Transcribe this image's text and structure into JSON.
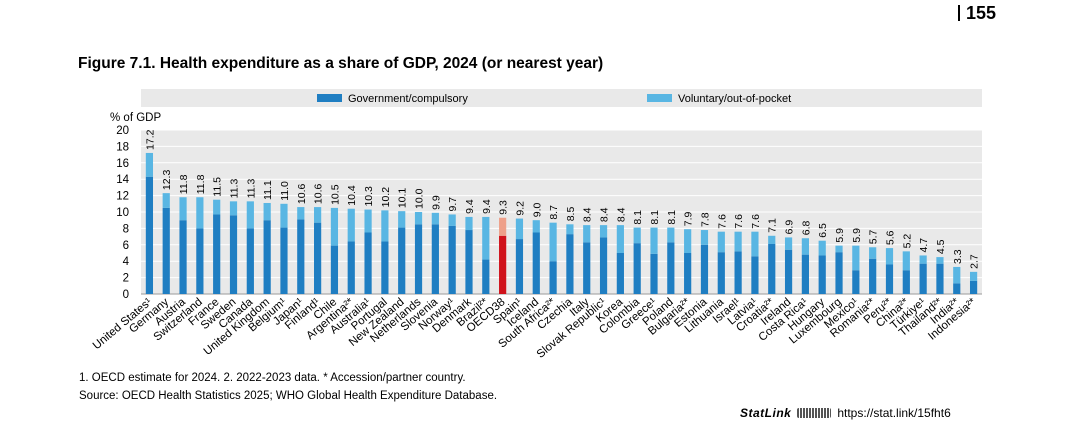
{
  "page_number": "155",
  "figure_title": "Figure 7.1. Health expenditure as a share of GDP, 2024 (or nearest year)",
  "footnote": "1. OECD estimate for 2024. 2. 2022-2023 data. * Accession/partner country.",
  "source": "Source: OECD Health Statistics 2025; WHO Global Health Expenditure Database.",
  "statlink": {
    "label": "StatLink",
    "logo_icon": "statlink-logo-icon",
    "url": "https://stat.link/15fht6"
  },
  "colors": {
    "government": "#1f7ec2",
    "voluntary": "#59b6e3",
    "oecd_government": "#d0121b",
    "oecd_voluntary": "#eea08a",
    "plot_background": "#e9e9e9",
    "gridline": "#ffffff"
  },
  "chart_data": {
    "type": "bar",
    "stacked": true,
    "title": "Figure 7.1. Health expenditure as a share of GDP, 2024 (or nearest year)",
    "ylabel": "% of GDP",
    "ylim": [
      0,
      20
    ],
    "yticks": [
      0,
      2,
      4,
      6,
      8,
      10,
      12,
      14,
      16,
      18,
      20
    ],
    "grid": true,
    "legend": {
      "placement": "top",
      "entries": [
        "Government/compulsory",
        "Voluntary/out-of-pocket"
      ]
    },
    "highlight": "OECD38",
    "categories": [
      "United States¹",
      "Germany",
      "Austria",
      "Switzerland",
      "France",
      "Sweden",
      "Canada",
      "United Kingdom",
      "Belgium¹",
      "Japan¹",
      "Finland¹",
      "Chile",
      "Argentina²*",
      "Australia¹",
      "Portugal",
      "New Zealand",
      "Netherlands",
      "Slovenia",
      "Norway¹",
      "Denmark",
      "Brazil²*",
      "OECD38",
      "Spain¹",
      "Iceland",
      "South Africa²*",
      "Czechia",
      "Italy",
      "Slovak Republic¹",
      "Korea",
      "Colombia",
      "Greece¹",
      "Poland",
      "Bulgaria²*",
      "Estonia",
      "Lithuania",
      "Israel¹",
      "Latvia¹",
      "Croatia²*",
      "Ireland",
      "Costa Rica¹",
      "Hungary",
      "Luxembourg",
      "Mexico¹",
      "Romania²*",
      "Peru²*",
      "China²*",
      "Türkiye¹",
      "Thailand²*",
      "India²*",
      "Indonesia²*"
    ],
    "totals": [
      17.2,
      12.3,
      11.8,
      11.8,
      11.5,
      11.3,
      11.3,
      11.1,
      11.0,
      10.6,
      10.6,
      10.5,
      10.4,
      10.3,
      10.2,
      10.1,
      10.0,
      9.9,
      9.7,
      9.4,
      9.4,
      9.3,
      9.2,
      9.0,
      8.7,
      8.5,
      8.4,
      8.4,
      8.4,
      8.1,
      8.1,
      8.1,
      7.9,
      7.8,
      7.6,
      7.6,
      7.6,
      7.1,
      6.9,
      6.8,
      6.5,
      5.9,
      5.9,
      5.7,
      5.6,
      5.2,
      4.7,
      4.5,
      3.3,
      2.7
    ],
    "series": [
      {
        "name": "Government/compulsory",
        "values": [
          14.3,
          10.5,
          9.0,
          8.0,
          9.7,
          9.6,
          8.0,
          9.0,
          8.1,
          9.1,
          8.7,
          5.9,
          6.4,
          7.5,
          6.4,
          8.1,
          8.5,
          8.5,
          8.3,
          7.8,
          4.2,
          7.1,
          6.7,
          7.5,
          4.0,
          7.3,
          6.3,
          6.9,
          5.0,
          6.2,
          4.9,
          6.3,
          5.0,
          6.0,
          5.1,
          5.2,
          4.6,
          6.1,
          5.4,
          4.8,
          4.7,
          5.1,
          2.9,
          4.3,
          3.6,
          2.9,
          3.7,
          3.7,
          1.3,
          1.6
        ]
      },
      {
        "name": "Voluntary/out-of-pocket",
        "values": [
          2.9,
          1.8,
          2.8,
          3.8,
          1.8,
          1.7,
          3.3,
          2.1,
          2.9,
          1.5,
          1.9,
          4.6,
          4.0,
          2.8,
          3.8,
          2.0,
          1.5,
          1.4,
          1.4,
          1.6,
          5.2,
          2.2,
          2.5,
          1.5,
          4.7,
          1.2,
          2.1,
          1.5,
          3.4,
          1.9,
          3.2,
          1.8,
          2.9,
          1.8,
          2.5,
          2.4,
          3.0,
          1.0,
          1.5,
          2.0,
          1.8,
          0.8,
          3.0,
          1.4,
          2.0,
          2.3,
          1.0,
          0.8,
          2.0,
          1.1
        ]
      }
    ]
  }
}
